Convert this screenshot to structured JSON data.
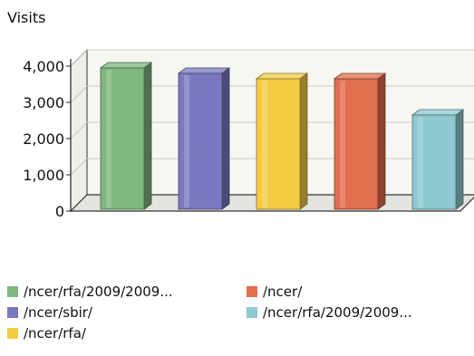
{
  "chart_data": {
    "type": "bar",
    "ylabel": "Visits",
    "xlabel": "",
    "categories": [
      "/ncer/rfa/2009/2009...",
      "/ncer/sbir/",
      "/ncer/rfa/",
      "/ncer/",
      "/ncer/rfa/2009/2009..."
    ],
    "values": [
      3900,
      3750,
      3600,
      3600,
      2600
    ],
    "colors": [
      "#7fb77f",
      "#7b78c0",
      "#f3cc44",
      "#e16e4e",
      "#8ec8d0"
    ],
    "ylim": [
      0,
      4000
    ],
    "yticks": [
      0,
      1000,
      2000,
      3000,
      4000
    ],
    "ytick_labels": [
      "0",
      "1,000",
      "2,000",
      "3,000",
      "4,000"
    ],
    "grid": true,
    "style": "3d",
    "legend_position": "bottom",
    "legend_labels": [
      "/ncer/rfa/2009/2009...",
      "/ncer/sbir/",
      "/ncer/rfa/",
      "/ncer/",
      "/ncer/rfa/2009/2009..."
    ]
  }
}
